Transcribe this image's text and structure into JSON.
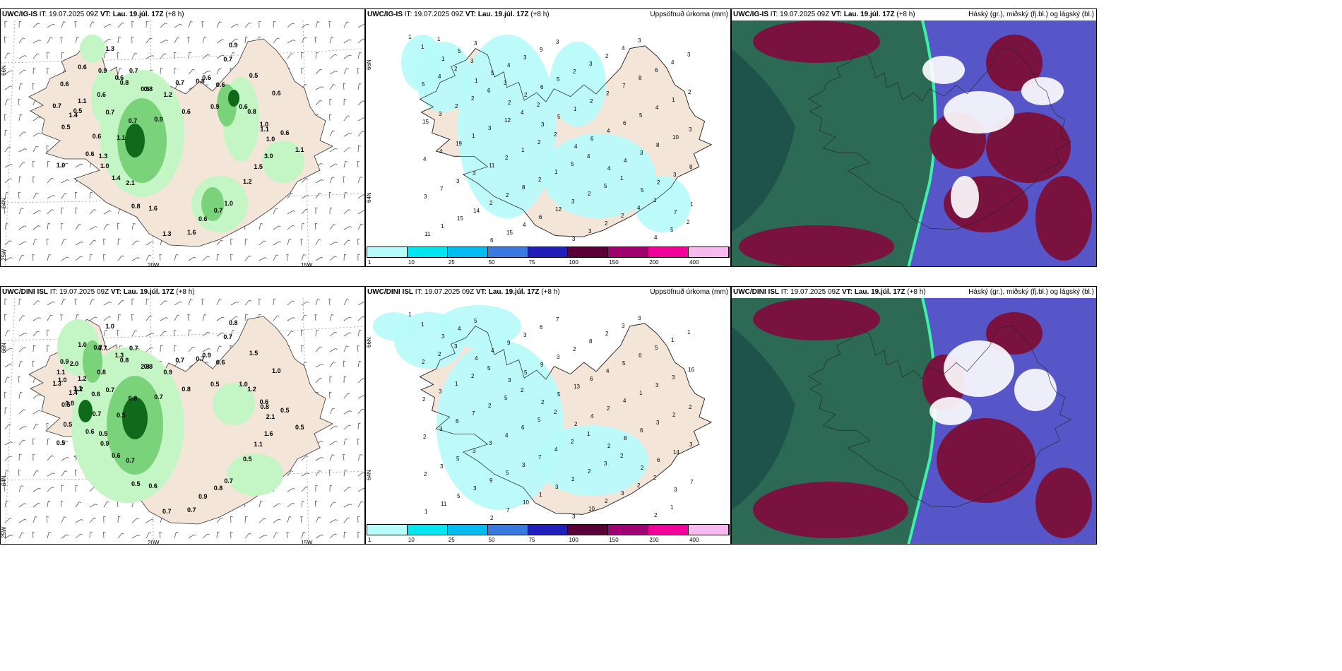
{
  "rows": [
    {
      "label": "UWC/IG-IS",
      "it_label": "IT:",
      "it_value": "19.07.2025 09Z",
      "vt_label": "VT:",
      "vt_value": "Lau. 19.júl. 17Z",
      "lead": "(+8 h)",
      "precip_values": [
        "0.7",
        "1.4",
        "0.5",
        "1.1",
        "0.5",
        "0.6",
        "0.6",
        "0.6",
        "0.6",
        "1.3",
        "0.9",
        "0.7",
        "0.8",
        "0.7",
        "0.6",
        "0.7",
        "1.2",
        "0.9",
        "0.8",
        "0.6",
        "0.7",
        "0.9",
        "0.6",
        "0.8",
        "0.9",
        "0.7",
        "0.6",
        "0.5",
        "0.6",
        "0.6",
        "1.0",
        "0.8",
        "0.6",
        "1.1",
        "1.1",
        "1.0",
        "1.5",
        "3.0",
        "1.2",
        "0.7",
        "1.0",
        "1.6",
        "0.6",
        "1.3",
        "0.8",
        "1.6",
        "1.4",
        "2.1",
        "1.3",
        "1.0",
        "1.1",
        "0.6",
        "1.0",
        "0.6"
      ],
      "accum_numbers": [
        "1",
        "1",
        "1",
        "2",
        "3",
        "4",
        "4",
        "5",
        "7",
        "11",
        "5",
        "5",
        "2",
        "5",
        "6",
        "4",
        "2",
        "1",
        "1",
        "3",
        "4",
        "6",
        "1",
        "4",
        "3",
        "3",
        "3",
        "15",
        "6",
        "3",
        "5",
        "2",
        "6",
        "8",
        "8",
        "7",
        "14",
        "15",
        "9",
        "2",
        "2",
        "5",
        "10",
        "4",
        "3",
        "2",
        "4",
        "3",
        "3",
        "7",
        "4",
        "3",
        "4",
        "3",
        "2",
        "6",
        "3",
        "2",
        "8",
        "1",
        "15",
        "19",
        "11",
        "8",
        "12",
        "3",
        "4",
        "6",
        "2",
        "3",
        "1",
        "2",
        "2",
        "3",
        "2",
        "3",
        "4",
        "5",
        "2",
        "3",
        "1",
        "1",
        "2",
        "2",
        "4",
        "3",
        "4",
        "2",
        "12",
        "2",
        "5",
        "5",
        "4",
        "5",
        "1",
        "2",
        "6",
        "4",
        "2",
        "4",
        "1",
        "1",
        "2",
        "1",
        "3",
        "3",
        "2"
      ],
      "layers_title": "Háský (gr.), miðský (fj.bl.) og lágský (bl.)"
    },
    {
      "label": "UWC/DINI ISL",
      "it_label": "IT:",
      "it_value": "19.07.2025 09Z",
      "vt_label": "VT:",
      "vt_value": "Lau. 19.júl. 17Z",
      "lead": "(+8 h)",
      "precip_values": [
        "1.3",
        "1.4",
        "0.5",
        "1.2",
        "1.1",
        "0.9",
        "0.8",
        "1.0",
        "1.3",
        "1.0",
        "0.7",
        "0.7",
        "0.8",
        "0.7",
        "2.8",
        "0.8",
        "0.9",
        "0.7",
        "0.8",
        "0.8",
        "0.7",
        "0.5",
        "0.9",
        "0.7",
        "0.8",
        "0.7",
        "0.6",
        "1.5",
        "1.0",
        "1.0",
        "0.6",
        "1.2",
        "0.5",
        "0.8",
        "0.5",
        "2.1",
        "1.1",
        "1.6",
        "0.5",
        "0.8",
        "0.7",
        "0.7",
        "0.9",
        "0.7",
        "0.5",
        "0.6",
        "0.6",
        "0.7",
        "0.5",
        "0.9",
        "0.5",
        "0.6",
        "0.5",
        "0.7",
        "0.5",
        "0.6",
        "0.8",
        "1.0",
        "1.2",
        "2.0",
        "1.1",
        "0.7"
      ],
      "accum_numbers": [
        "1",
        "3",
        "4",
        "3",
        "2",
        "2",
        "2",
        "2",
        "3",
        "1",
        "4",
        "4",
        "5",
        "5",
        "4",
        "8",
        "6",
        "7",
        "11",
        "5",
        "9",
        "9",
        "13",
        "2",
        "6",
        "14",
        "2",
        "5",
        "2",
        "3",
        "3",
        "6",
        "4",
        "3",
        "3",
        "3",
        "3",
        "7",
        "6",
        "2",
        "4",
        "1",
        "2",
        "2",
        "5",
        "9",
        "10",
        "7",
        "8",
        "5",
        "3",
        "2",
        "3",
        "3",
        "5",
        "1",
        "3",
        "2",
        "6",
        "3",
        "2",
        "6",
        "3",
        "3",
        "3",
        "10",
        "3",
        "5",
        "16",
        "3",
        "7",
        "4",
        "7",
        "2",
        "2",
        "3",
        "1",
        "2",
        "1",
        "2",
        "6",
        "4",
        "2",
        "3",
        "2",
        "1",
        "2",
        "2",
        "5",
        "5",
        "2",
        "3",
        "2",
        "1",
        "1",
        "3",
        "5",
        "2",
        "2",
        "1",
        "2",
        "2"
      ],
      "layers_title": "Háský (gr.), miðský (fj.bl.) og lágský (bl.)"
    }
  ],
  "accum_title": "Uppsöfnuð úrkoma (mm)",
  "axis_labels": {
    "lon": [
      "20W",
      "15W"
    ],
    "lat": [
      "66N",
      "64N"
    ],
    "corner": "25W"
  },
  "colorbar": {
    "ticks": [
      "1",
      "10",
      "25",
      "50",
      "75",
      "100",
      "150",
      "200",
      "400"
    ],
    "colors": [
      "#b7fbfb",
      "#00e6f0",
      "#00bcf0",
      "#3a7ae0",
      "#2020b8",
      "#5a0038",
      "#a00070",
      "#f00098",
      "#f8b8f0"
    ]
  },
  "palette": {
    "land": "#f3e6d9",
    "precip_light": "#c4f5c4",
    "precip_mid": "#7ad27a",
    "precip_dark": "#0f6a1c",
    "accum_fill": "#b7fbfb",
    "layer_sea_green": "#2c6a55",
    "layer_deep": "#1c4e48",
    "layer_magenta": "#7a1240",
    "layer_blue": "#5656c8"
  }
}
